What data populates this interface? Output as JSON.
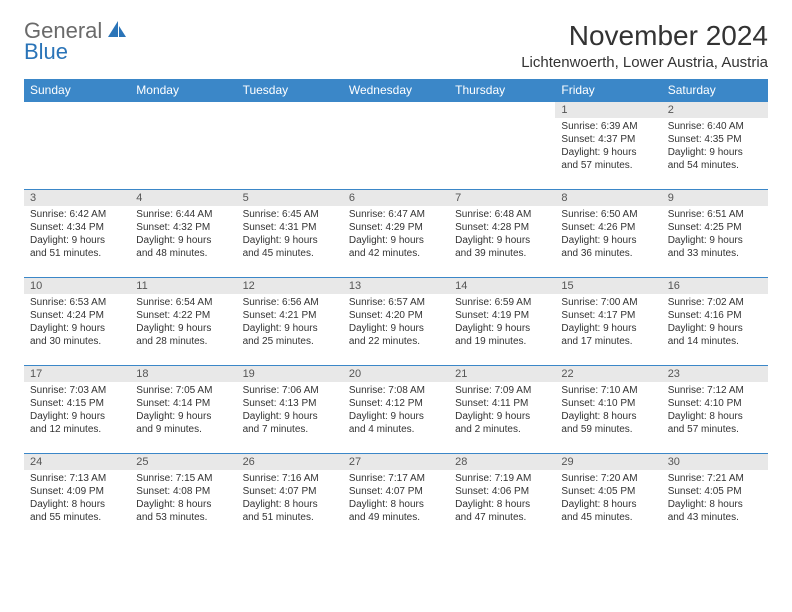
{
  "logo": {
    "word1": "General",
    "word2": "Blue"
  },
  "title": "November 2024",
  "location": "Lichtenwoerth, Lower Austria, Austria",
  "colors": {
    "header_bg": "#3b87c8",
    "header_text": "#ffffff",
    "daynum_bg": "#e8e8e8",
    "border": "#3b87c8",
    "text": "#333333",
    "logo_gray": "#6a6a6a",
    "logo_blue": "#2a74b8"
  },
  "fonts": {
    "title_size": 28,
    "location_size": 15,
    "dow_size": 12,
    "daynum_size": 11,
    "body_size": 10
  },
  "days_of_week": [
    "Sunday",
    "Monday",
    "Tuesday",
    "Wednesday",
    "Thursday",
    "Friday",
    "Saturday"
  ],
  "weeks": [
    [
      {
        "n": "",
        "sr": "",
        "ss": "",
        "dl": ""
      },
      {
        "n": "",
        "sr": "",
        "ss": "",
        "dl": ""
      },
      {
        "n": "",
        "sr": "",
        "ss": "",
        "dl": ""
      },
      {
        "n": "",
        "sr": "",
        "ss": "",
        "dl": ""
      },
      {
        "n": "",
        "sr": "",
        "ss": "",
        "dl": ""
      },
      {
        "n": "1",
        "sr": "Sunrise: 6:39 AM",
        "ss": "Sunset: 4:37 PM",
        "dl": "Daylight: 9 hours and 57 minutes."
      },
      {
        "n": "2",
        "sr": "Sunrise: 6:40 AM",
        "ss": "Sunset: 4:35 PM",
        "dl": "Daylight: 9 hours and 54 minutes."
      }
    ],
    [
      {
        "n": "3",
        "sr": "Sunrise: 6:42 AM",
        "ss": "Sunset: 4:34 PM",
        "dl": "Daylight: 9 hours and 51 minutes."
      },
      {
        "n": "4",
        "sr": "Sunrise: 6:44 AM",
        "ss": "Sunset: 4:32 PM",
        "dl": "Daylight: 9 hours and 48 minutes."
      },
      {
        "n": "5",
        "sr": "Sunrise: 6:45 AM",
        "ss": "Sunset: 4:31 PM",
        "dl": "Daylight: 9 hours and 45 minutes."
      },
      {
        "n": "6",
        "sr": "Sunrise: 6:47 AM",
        "ss": "Sunset: 4:29 PM",
        "dl": "Daylight: 9 hours and 42 minutes."
      },
      {
        "n": "7",
        "sr": "Sunrise: 6:48 AM",
        "ss": "Sunset: 4:28 PM",
        "dl": "Daylight: 9 hours and 39 minutes."
      },
      {
        "n": "8",
        "sr": "Sunrise: 6:50 AM",
        "ss": "Sunset: 4:26 PM",
        "dl": "Daylight: 9 hours and 36 minutes."
      },
      {
        "n": "9",
        "sr": "Sunrise: 6:51 AM",
        "ss": "Sunset: 4:25 PM",
        "dl": "Daylight: 9 hours and 33 minutes."
      }
    ],
    [
      {
        "n": "10",
        "sr": "Sunrise: 6:53 AM",
        "ss": "Sunset: 4:24 PM",
        "dl": "Daylight: 9 hours and 30 minutes."
      },
      {
        "n": "11",
        "sr": "Sunrise: 6:54 AM",
        "ss": "Sunset: 4:22 PM",
        "dl": "Daylight: 9 hours and 28 minutes."
      },
      {
        "n": "12",
        "sr": "Sunrise: 6:56 AM",
        "ss": "Sunset: 4:21 PM",
        "dl": "Daylight: 9 hours and 25 minutes."
      },
      {
        "n": "13",
        "sr": "Sunrise: 6:57 AM",
        "ss": "Sunset: 4:20 PM",
        "dl": "Daylight: 9 hours and 22 minutes."
      },
      {
        "n": "14",
        "sr": "Sunrise: 6:59 AM",
        "ss": "Sunset: 4:19 PM",
        "dl": "Daylight: 9 hours and 19 minutes."
      },
      {
        "n": "15",
        "sr": "Sunrise: 7:00 AM",
        "ss": "Sunset: 4:17 PM",
        "dl": "Daylight: 9 hours and 17 minutes."
      },
      {
        "n": "16",
        "sr": "Sunrise: 7:02 AM",
        "ss": "Sunset: 4:16 PM",
        "dl": "Daylight: 9 hours and 14 minutes."
      }
    ],
    [
      {
        "n": "17",
        "sr": "Sunrise: 7:03 AM",
        "ss": "Sunset: 4:15 PM",
        "dl": "Daylight: 9 hours and 12 minutes."
      },
      {
        "n": "18",
        "sr": "Sunrise: 7:05 AM",
        "ss": "Sunset: 4:14 PM",
        "dl": "Daylight: 9 hours and 9 minutes."
      },
      {
        "n": "19",
        "sr": "Sunrise: 7:06 AM",
        "ss": "Sunset: 4:13 PM",
        "dl": "Daylight: 9 hours and 7 minutes."
      },
      {
        "n": "20",
        "sr": "Sunrise: 7:08 AM",
        "ss": "Sunset: 4:12 PM",
        "dl": "Daylight: 9 hours and 4 minutes."
      },
      {
        "n": "21",
        "sr": "Sunrise: 7:09 AM",
        "ss": "Sunset: 4:11 PM",
        "dl": "Daylight: 9 hours and 2 minutes."
      },
      {
        "n": "22",
        "sr": "Sunrise: 7:10 AM",
        "ss": "Sunset: 4:10 PM",
        "dl": "Daylight: 8 hours and 59 minutes."
      },
      {
        "n": "23",
        "sr": "Sunrise: 7:12 AM",
        "ss": "Sunset: 4:10 PM",
        "dl": "Daylight: 8 hours and 57 minutes."
      }
    ],
    [
      {
        "n": "24",
        "sr": "Sunrise: 7:13 AM",
        "ss": "Sunset: 4:09 PM",
        "dl": "Daylight: 8 hours and 55 minutes."
      },
      {
        "n": "25",
        "sr": "Sunrise: 7:15 AM",
        "ss": "Sunset: 4:08 PM",
        "dl": "Daylight: 8 hours and 53 minutes."
      },
      {
        "n": "26",
        "sr": "Sunrise: 7:16 AM",
        "ss": "Sunset: 4:07 PM",
        "dl": "Daylight: 8 hours and 51 minutes."
      },
      {
        "n": "27",
        "sr": "Sunrise: 7:17 AM",
        "ss": "Sunset: 4:07 PM",
        "dl": "Daylight: 8 hours and 49 minutes."
      },
      {
        "n": "28",
        "sr": "Sunrise: 7:19 AM",
        "ss": "Sunset: 4:06 PM",
        "dl": "Daylight: 8 hours and 47 minutes."
      },
      {
        "n": "29",
        "sr": "Sunrise: 7:20 AM",
        "ss": "Sunset: 4:05 PM",
        "dl": "Daylight: 8 hours and 45 minutes."
      },
      {
        "n": "30",
        "sr": "Sunrise: 7:21 AM",
        "ss": "Sunset: 4:05 PM",
        "dl": "Daylight: 8 hours and 43 minutes."
      }
    ]
  ]
}
